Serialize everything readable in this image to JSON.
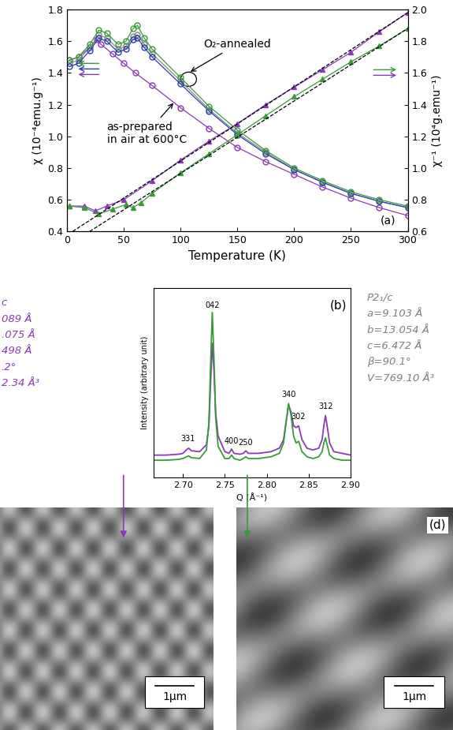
{
  "chart_data": [
    {
      "type": "line",
      "xlabel": "Temperature (K)",
      "ylabel": "χ (10⁻⁴emu.g⁻¹)",
      "y2label": "χ⁻¹ (10⁴g.emu⁻¹)",
      "xlim": [
        0,
        300
      ],
      "xticks": [
        0,
        50,
        100,
        150,
        200,
        250,
        300
      ],
      "ylim": [
        0.4,
        1.8
      ],
      "yticks": [
        0.4,
        0.6,
        0.8,
        1.0,
        1.2,
        1.4,
        1.6,
        1.8
      ],
      "y2lim": [
        0.6,
        2.0
      ],
      "y2ticks": [
        0.6,
        0.8,
        1.0,
        1.2,
        1.4,
        1.6,
        1.8,
        2.0
      ],
      "series": [
        {
          "color": "#8a3ab9",
          "marker": "circle",
          "line_style": "solid",
          "axis": "y",
          "x": [
            2,
            10,
            20,
            26,
            30,
            40,
            50,
            60,
            75,
            100,
            125,
            150,
            175,
            200,
            225,
            250,
            275,
            300
          ],
          "values": [
            1.48,
            1.5,
            1.56,
            1.61,
            1.58,
            1.52,
            1.46,
            1.4,
            1.32,
            1.18,
            1.05,
            0.93,
            0.84,
            0.76,
            0.68,
            0.61,
            0.55,
            0.5
          ]
        },
        {
          "color": "#888888",
          "marker": "circle",
          "line_style": "solid",
          "axis": "y",
          "x": [
            2,
            10,
            20,
            28,
            35,
            45,
            52,
            58,
            62,
            68,
            75,
            100,
            125,
            150,
            175,
            200,
            225,
            250,
            275,
            300
          ],
          "values": [
            1.46,
            1.48,
            1.56,
            1.64,
            1.62,
            1.55,
            1.57,
            1.63,
            1.64,
            1.58,
            1.52,
            1.35,
            1.17,
            1.02,
            0.9,
            0.79,
            0.71,
            0.64,
            0.59,
            0.55
          ]
        },
        {
          "color": "#2a3fb0",
          "marker": "circle",
          "line_style": "solid",
          "axis": "y",
          "x": [
            2,
            10,
            20,
            28,
            35,
            45,
            52,
            58,
            62,
            68,
            75,
            100,
            125,
            150,
            175,
            200,
            225,
            250,
            275,
            300
          ],
          "values": [
            1.44,
            1.46,
            1.54,
            1.62,
            1.6,
            1.53,
            1.55,
            1.61,
            1.62,
            1.56,
            1.5,
            1.33,
            1.16,
            1.01,
            0.89,
            0.79,
            0.71,
            0.64,
            0.59,
            0.55
          ]
        },
        {
          "color": "#3a9a3a",
          "marker": "circle",
          "line_style": "solid",
          "axis": "y",
          "x": [
            2,
            10,
            20,
            28,
            35,
            45,
            52,
            58,
            62,
            68,
            75,
            100,
            125,
            150,
            175,
            200,
            225,
            250,
            275,
            300
          ],
          "values": [
            1.48,
            1.5,
            1.58,
            1.67,
            1.65,
            1.58,
            1.6,
            1.68,
            1.7,
            1.62,
            1.55,
            1.37,
            1.19,
            1.04,
            0.91,
            0.8,
            0.72,
            0.65,
            0.6,
            0.56
          ]
        },
        {
          "color": "#8a3ab9",
          "marker": "triangle",
          "line_style": "solid",
          "axis": "y2",
          "x": [
            2,
            15,
            25,
            35,
            50,
            75,
            100,
            125,
            150,
            175,
            200,
            225,
            250,
            275,
            300
          ],
          "values": [
            0.76,
            0.76,
            0.73,
            0.76,
            0.8,
            0.92,
            1.05,
            1.17,
            1.28,
            1.4,
            1.51,
            1.62,
            1.73,
            1.86,
            1.98
          ]
        },
        {
          "color": "#3a9a3a",
          "marker": "triangle",
          "line_style": "solid",
          "axis": "y2",
          "x": [
            2,
            15,
            28,
            40,
            52,
            58,
            65,
            75,
            100,
            125,
            150,
            175,
            200,
            225,
            250,
            275,
            300
          ],
          "values": [
            0.76,
            0.75,
            0.71,
            0.74,
            0.77,
            0.75,
            0.78,
            0.84,
            0.97,
            1.09,
            1.21,
            1.33,
            1.45,
            1.56,
            1.67,
            1.77,
            1.88
          ]
        },
        {
          "color": "#000000",
          "marker": "none",
          "line_style": "dashed",
          "axis": "y2",
          "x": [
            5,
            300
          ],
          "values": [
            0.6,
            1.98
          ]
        },
        {
          "color": "#000000",
          "marker": "none",
          "line_style": "dashed",
          "axis": "y2",
          "x": [
            20,
            300
          ],
          "values": [
            0.6,
            1.88
          ]
        }
      ],
      "annotations": [
        {
          "text": "O₂-annealed",
          "x": 120,
          "y": 1.58,
          "arrow_x": 107,
          "arrow_y": 1.4
        },
        {
          "text": "as-prepared\nin air at 600°C",
          "x": 35,
          "y": 1.02,
          "arrow_x": 95,
          "arrow_y": 1.22
        },
        {
          "text": "(a)",
          "x": 283,
          "y": 0.47
        }
      ]
    },
    {
      "type": "line",
      "xlabel": "Q (Å⁻¹)",
      "ylabel": "Intensity (arbitrary unit)",
      "tick_labels": "x",
      "xlim": [
        2.665,
        2.9
      ],
      "xticks": [
        {
          "value": 2.7,
          "label": "2.70"
        },
        {
          "value": 2.75,
          "label": "2.75"
        },
        {
          "value": 2.8,
          "label": "2.80"
        },
        {
          "value": 2.85,
          "label": "2.85"
        },
        {
          "value": 2.9,
          "label": "2.90"
        }
      ],
      "ylim": [
        0,
        1.1
      ],
      "yticks": [],
      "x": [
        2.665,
        2.68,
        2.695,
        2.7,
        2.704,
        2.707,
        2.71,
        2.72,
        2.728,
        2.731,
        2.733,
        2.735,
        2.737,
        2.739,
        2.742,
        2.75,
        2.755,
        2.758,
        2.761,
        2.768,
        2.772,
        2.775,
        2.778,
        2.79,
        2.805,
        2.815,
        2.82,
        2.823,
        2.826,
        2.829,
        2.832,
        2.835,
        2.838,
        2.842,
        2.848,
        2.855,
        2.862,
        2.866,
        2.868,
        2.87,
        2.872,
        2.875,
        2.88,
        2.89,
        2.9
      ],
      "series": [
        {
          "color": "#8a3ab9",
          "line_style": "solid",
          "values": [
            0.13,
            0.13,
            0.135,
            0.14,
            0.16,
            0.17,
            0.155,
            0.15,
            0.19,
            0.3,
            0.55,
            0.78,
            0.62,
            0.38,
            0.24,
            0.15,
            0.14,
            0.165,
            0.14,
            0.135,
            0.14,
            0.155,
            0.14,
            0.14,
            0.15,
            0.17,
            0.22,
            0.32,
            0.42,
            0.38,
            0.3,
            0.29,
            0.3,
            0.22,
            0.17,
            0.16,
            0.17,
            0.22,
            0.3,
            0.36,
            0.3,
            0.2,
            0.15,
            0.14,
            0.13
          ]
        },
        {
          "color": "#3a9a3a",
          "line_style": "solid",
          "values": [
            0.1,
            0.1,
            0.105,
            0.11,
            0.12,
            0.125,
            0.115,
            0.11,
            0.16,
            0.32,
            0.66,
            0.96,
            0.7,
            0.35,
            0.18,
            0.11,
            0.11,
            0.13,
            0.11,
            0.1,
            0.11,
            0.12,
            0.11,
            0.11,
            0.12,
            0.14,
            0.2,
            0.32,
            0.43,
            0.36,
            0.24,
            0.2,
            0.21,
            0.15,
            0.12,
            0.11,
            0.12,
            0.15,
            0.2,
            0.23,
            0.19,
            0.13,
            0.11,
            0.1,
            0.1
          ]
        }
      ],
      "annotations": [
        {
          "text": "331",
          "x": 2.706,
          "y": 0.2
        },
        {
          "text": "042",
          "x": 2.735,
          "y": 0.98
        },
        {
          "text": "400",
          "x": 2.758,
          "y": 0.19
        },
        {
          "text": "250",
          "x": 2.775,
          "y": 0.18
        },
        {
          "text": "340",
          "x": 2.826,
          "y": 0.46
        },
        {
          "text": "302",
          "x": 2.838,
          "y": 0.33
        },
        {
          "text": "312",
          "x": 2.87,
          "y": 0.39
        },
        {
          "text": "(b)",
          "x": 2.885,
          "y": 1.0
        }
      ]
    }
  ],
  "lattice_left": {
    "color": "#8a3ab9",
    "lines": [
      "c",
      "089 Å",
      ".075 Å",
      "498 Å",
      ".2°",
      "2.34 Å³"
    ]
  },
  "lattice_right": {
    "color": "#808080",
    "lines": [
      "P2₁/c",
      "a=9.103 Å",
      "b=13.054 Å",
      "c=6.472 Å",
      "β=90.1°",
      "V=769.10 Å³"
    ]
  },
  "images": [
    {
      "scale_bar": "1μm",
      "color": "#8a3ab9"
    },
    {
      "label": "(d)",
      "scale_bar": "1μm",
      "color": "#3a9a3a"
    }
  ]
}
